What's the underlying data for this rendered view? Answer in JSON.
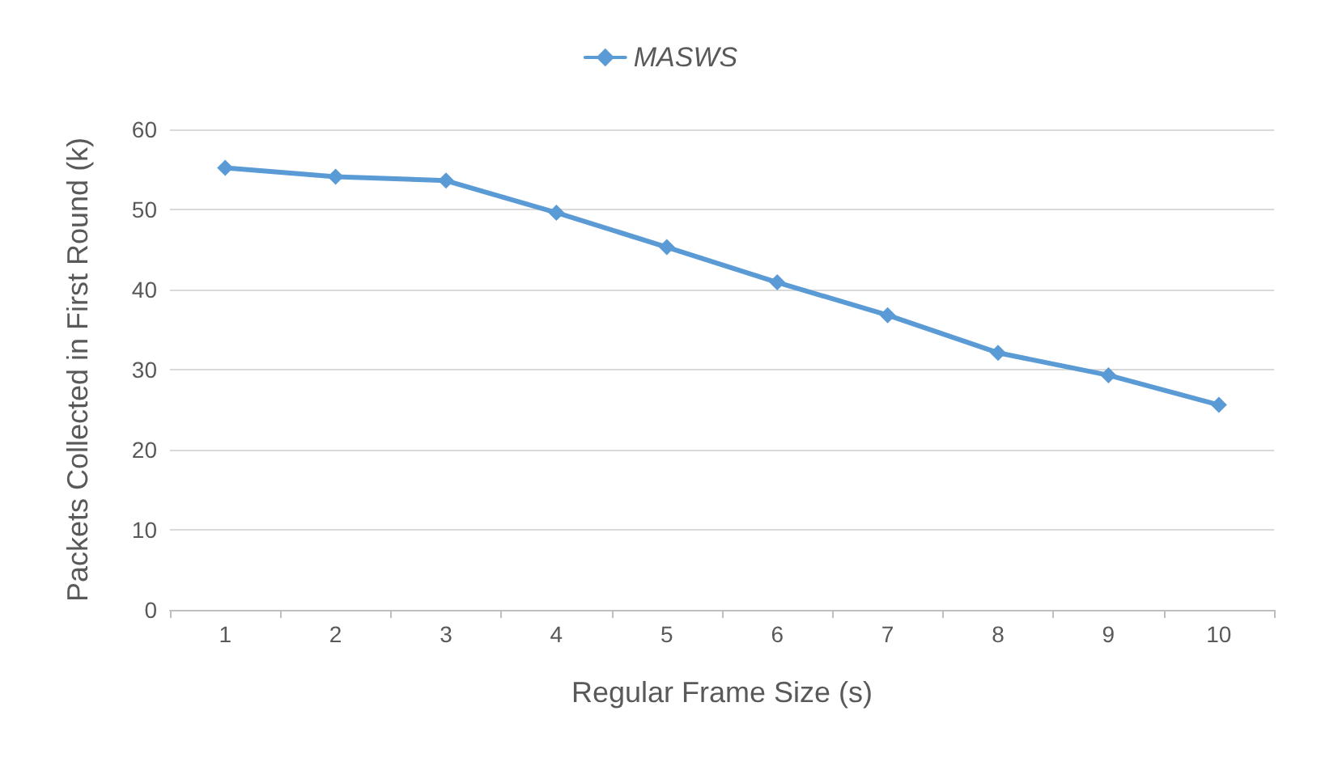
{
  "chart_data": {
    "type": "line",
    "xlabel": "Regular Frame Size (s)",
    "ylabel": "Packets Collected in First Round (k)",
    "categories": [
      "1",
      "2",
      "3",
      "4",
      "5",
      "6",
      "7",
      "8",
      "9",
      "10"
    ],
    "series": [
      {
        "name": "MASWS",
        "color": "#5b9bd5",
        "values": [
          55.2,
          54.1,
          53.6,
          49.6,
          45.3,
          40.9,
          36.8,
          32.1,
          29.3,
          25.6
        ]
      }
    ],
    "ylim": [
      0,
      60
    ],
    "yticks": [
      0,
      10,
      20,
      30,
      40,
      50,
      60
    ],
    "grid": "y",
    "legend": "top",
    "marker": "diamond",
    "line_style": "solid"
  }
}
